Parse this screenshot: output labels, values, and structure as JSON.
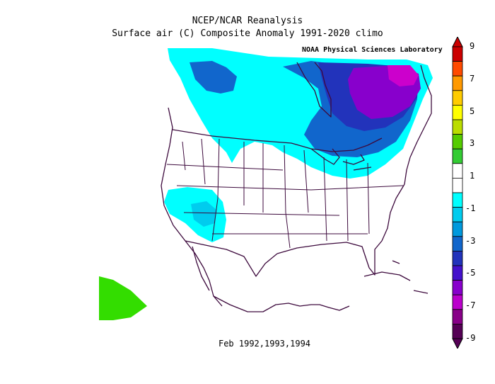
{
  "header": {
    "title": "NCEP/NCAR Reanalysis",
    "subtitle": "Surface air (C) Composite Anomaly 1991-2020 climo",
    "credit": "NOAA Physical Sciences Laboratory"
  },
  "footer": {
    "caption": "Feb 1992,1993,1994"
  },
  "colorbar": {
    "labels": [
      "9",
      "7",
      "5",
      "3",
      "1",
      "-1",
      "-3",
      "-5",
      "-7",
      "-9"
    ],
    "colors": [
      "#cc0000",
      "#ff4a00",
      "#ff9900",
      "#ffcc00",
      "#ffff00",
      "#bbdd00",
      "#55cc00",
      "#33cc33",
      "#ffffff",
      "#ffffff",
      "#00ffff",
      "#00ccee",
      "#0099dd",
      "#1166cc",
      "#2233bb",
      "#4411cc",
      "#8800cc",
      "#bb00cc",
      "#880088",
      "#550055"
    ]
  },
  "legend_colors": {
    "light_cyan": "#00ffff",
    "cyan": "#00ccee",
    "blue": "#1166cc",
    "indigo": "#2233bb",
    "purple": "#8800cc",
    "magenta": "#cc00cc",
    "green": "#33dd00",
    "border": "#3d0a3d"
  }
}
